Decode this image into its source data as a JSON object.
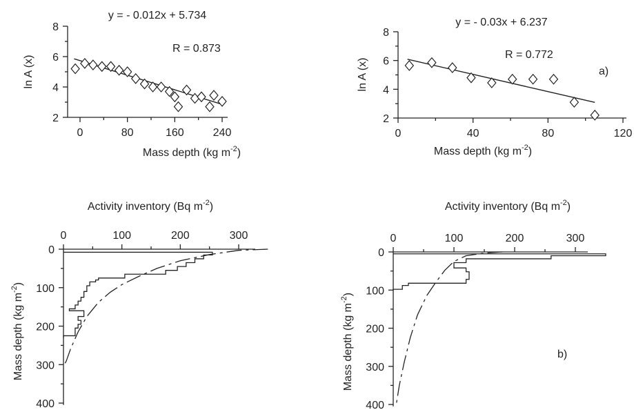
{
  "chart_data": [
    {
      "id": "top-left",
      "type": "scatter",
      "equation": "y = - 0.012x + 5.734",
      "r_label": "R  = 0.873",
      "panel_label": "",
      "xlabel": "Mass depth (kg m",
      "xlabel_sup": "-2",
      "xlabel_end": ")",
      "ylabel": "ln A  (x)",
      "xlim": [
        -15,
        245
      ],
      "ylim": [
        2,
        8
      ],
      "xticks": [
        0,
        80,
        160,
        240
      ],
      "yticks": [
        2,
        4,
        6,
        8
      ],
      "points": [
        {
          "x": -8,
          "y": 5.2
        },
        {
          "x": 8,
          "y": 5.55
        },
        {
          "x": 22,
          "y": 5.45
        },
        {
          "x": 37,
          "y": 5.35
        },
        {
          "x": 52,
          "y": 5.35
        },
        {
          "x": 66,
          "y": 5.1
        },
        {
          "x": 80,
          "y": 5.0
        },
        {
          "x": 94,
          "y": 4.55
        },
        {
          "x": 109,
          "y": 4.2
        },
        {
          "x": 123,
          "y": 4.0
        },
        {
          "x": 137,
          "y": 4.0
        },
        {
          "x": 151,
          "y": 3.7
        },
        {
          "x": 160,
          "y": 3.35
        },
        {
          "x": 166,
          "y": 2.7
        },
        {
          "x": 180,
          "y": 3.8
        },
        {
          "x": 194,
          "y": 3.25
        },
        {
          "x": 205,
          "y": 3.35
        },
        {
          "x": 219,
          "y": 2.7
        },
        {
          "x": 226,
          "y": 3.45
        },
        {
          "x": 240,
          "y": 3.05
        }
      ],
      "fit": {
        "slope": -0.012,
        "intercept": 5.734,
        "x_range": [
          -10,
          240
        ]
      }
    },
    {
      "id": "top-right",
      "type": "scatter",
      "equation": "y = - 0.03x + 6.237",
      "r_label": "R  = 0.772",
      "panel_label": "a)",
      "xlabel": "Mass depth (kg m",
      "xlabel_sup": "-2",
      "xlabel_end": ")",
      "ylabel": "ln A  (x)",
      "xlim": [
        0,
        122
      ],
      "ylim": [
        2,
        8
      ],
      "xticks": [
        0,
        40,
        80,
        120
      ],
      "yticks": [
        2,
        4,
        6,
        8
      ],
      "points": [
        {
          "x": 6,
          "y": 5.65
        },
        {
          "x": 18,
          "y": 5.85
        },
        {
          "x": 29,
          "y": 5.5
        },
        {
          "x": 39,
          "y": 4.8
        },
        {
          "x": 50,
          "y": 4.45
        },
        {
          "x": 61,
          "y": 4.7
        },
        {
          "x": 72,
          "y": 4.7
        },
        {
          "x": 83,
          "y": 4.7
        },
        {
          "x": 94,
          "y": 3.1
        },
        {
          "x": 105,
          "y": 2.2
        }
      ],
      "fit": {
        "slope": -0.03,
        "intercept": 6.237,
        "x_range": [
          5,
          105
        ]
      }
    },
    {
      "id": "bottom-left",
      "type": "line",
      "title": "Activity inventory (Bq m",
      "title_sup": "-2",
      "title_end": ")",
      "panel_label": "",
      "ylabel": "Mass depth (kg m",
      "ylabel_sup": "-2",
      "ylabel_end": ")",
      "xlim": [
        0,
        355
      ],
      "ylim": [
        0,
        410
      ],
      "xticks": [
        0,
        100,
        200,
        300
      ],
      "yticks": [
        0,
        100,
        200,
        300,
        400
      ],
      "histogram_top": 8,
      "histogram": [
        {
          "depth": 8,
          "value": 200
        },
        {
          "depth": 15,
          "value": 255
        },
        {
          "depth": 25,
          "value": 240
        },
        {
          "depth": 35,
          "value": 225
        },
        {
          "depth": 45,
          "value": 210
        },
        {
          "depth": 55,
          "value": 195
        },
        {
          "depth": 65,
          "value": 175
        },
        {
          "depth": 75,
          "value": 105
        },
        {
          "depth": 80,
          "value": 60
        },
        {
          "depth": 85,
          "value": 55
        },
        {
          "depth": 95,
          "value": 45
        },
        {
          "depth": 110,
          "value": 40
        },
        {
          "depth": 125,
          "value": 35
        },
        {
          "depth": 135,
          "value": 30
        },
        {
          "depth": 145,
          "value": 25
        },
        {
          "depth": 155,
          "value": 20
        },
        {
          "depth": 160,
          "value": 10
        },
        {
          "depth": 165,
          "value": 35
        },
        {
          "depth": 175,
          "value": 35
        },
        {
          "depth": 185,
          "value": 25
        },
        {
          "depth": 195,
          "value": 30
        },
        {
          "depth": 205,
          "value": 25
        },
        {
          "depth": 215,
          "value": 20
        },
        {
          "depth": 225,
          "value": 20
        },
        {
          "depth": 230,
          "value": 0
        }
      ],
      "model_curve": [
        {
          "value": 350,
          "depth": 0
        },
        {
          "value": 300,
          "depth": 3
        },
        {
          "value": 250,
          "depth": 14
        },
        {
          "value": 200,
          "depth": 30
        },
        {
          "value": 160,
          "depth": 50
        },
        {
          "value": 130,
          "depth": 70
        },
        {
          "value": 100,
          "depth": 92
        },
        {
          "value": 80,
          "depth": 112
        },
        {
          "value": 60,
          "depth": 138
        },
        {
          "value": 40,
          "depth": 175
        },
        {
          "value": 25,
          "depth": 215
        },
        {
          "value": 12,
          "depth": 260
        },
        {
          "value": 5,
          "depth": 290
        },
        {
          "value": 0,
          "depth": 305
        }
      ]
    },
    {
      "id": "bottom-right",
      "type": "line",
      "title": "Activity inventory (Bq m",
      "title_sup": "-2",
      "title_end": ")",
      "panel_label": "b)",
      "ylabel": "Mass depth (kg m",
      "ylabel_sup": "-2",
      "ylabel_end": ")",
      "xlim": [
        0,
        355
      ],
      "ylim": [
        0,
        410
      ],
      "xticks": [
        0,
        100,
        200,
        300
      ],
      "yticks": [
        0,
        100,
        200,
        300,
        400
      ],
      "histogram_top": 5,
      "histogram": [
        {
          "depth": 5,
          "value": 260
        },
        {
          "depth": 10,
          "value": 350
        },
        {
          "depth": 18,
          "value": 260
        },
        {
          "depth": 28,
          "value": 120
        },
        {
          "depth": 42,
          "value": 100
        },
        {
          "depth": 52,
          "value": 120
        },
        {
          "depth": 62,
          "value": 125
        },
        {
          "depth": 72,
          "value": 125
        },
        {
          "depth": 82,
          "value": 120
        },
        {
          "depth": 88,
          "value": 25
        },
        {
          "depth": 98,
          "value": 15
        },
        {
          "depth": 102,
          "value": 0
        }
      ],
      "model_curve": [
        {
          "value": 180,
          "depth": 0
        },
        {
          "value": 150,
          "depth": 3
        },
        {
          "value": 120,
          "depth": 10
        },
        {
          "value": 100,
          "depth": 25
        },
        {
          "value": 85,
          "depth": 48
        },
        {
          "value": 70,
          "depth": 80
        },
        {
          "value": 55,
          "depth": 115
        },
        {
          "value": 40,
          "depth": 165
        },
        {
          "value": 28,
          "depth": 225
        },
        {
          "value": 18,
          "depth": 290
        },
        {
          "value": 10,
          "depth": 350
        },
        {
          "value": 5,
          "depth": 400
        }
      ]
    }
  ]
}
